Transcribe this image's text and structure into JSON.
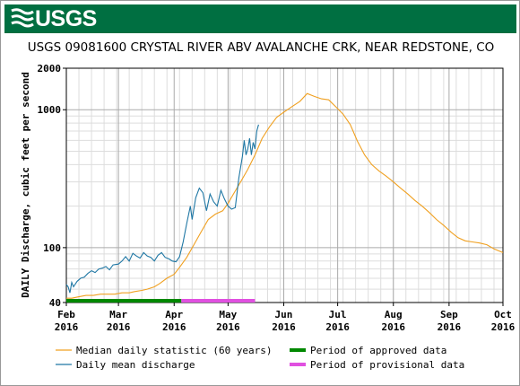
{
  "brand": {
    "logo_text": "USGS",
    "banner_color": "#006f41"
  },
  "chart_data": {
    "type": "line",
    "title": "USGS 09081600 CRYSTAL RIVER ABV AVALANCHE CRK, NEAR REDSTONE, CO",
    "ylabel": "DAILY Discharge, cubic feet per second",
    "xlabel": "",
    "y_scale": "log",
    "ylim": [
      40,
      2000
    ],
    "y_ticks": [
      {
        "value": 40,
        "label": "40"
      },
      {
        "value": 100,
        "label": "100"
      },
      {
        "value": 1000,
        "label": "1000"
      },
      {
        "value": 2000,
        "label": "2000"
      }
    ],
    "xlim": [
      "2016-02-01",
      "2016-10-01"
    ],
    "x_ticks": [
      {
        "date": "2016-02-01",
        "month": "Feb",
        "year": "2016"
      },
      {
        "date": "2016-03-01",
        "month": "Mar",
        "year": "2016"
      },
      {
        "date": "2016-04-01",
        "month": "Apr",
        "year": "2016"
      },
      {
        "date": "2016-05-01",
        "month": "May",
        "year": "2016"
      },
      {
        "date": "2016-06-01",
        "month": "Jun",
        "year": "2016"
      },
      {
        "date": "2016-07-01",
        "month": "Jul",
        "year": "2016"
      },
      {
        "date": "2016-08-01",
        "month": "Aug",
        "year": "2016"
      },
      {
        "date": "2016-09-01",
        "month": "Sep",
        "year": "2016"
      },
      {
        "date": "2016-10-01",
        "month": "Oct",
        "year": "2016"
      }
    ],
    "grid": true,
    "legend_position": "bottom",
    "series": [
      {
        "name": "Median daily statistic (60 years)",
        "color": "#f0a020",
        "points": [
          [
            "2016-02-01",
            43
          ],
          [
            "2016-02-04",
            43
          ],
          [
            "2016-02-08",
            44
          ],
          [
            "2016-02-12",
            45
          ],
          [
            "2016-02-16",
            45
          ],
          [
            "2016-02-20",
            46
          ],
          [
            "2016-02-24",
            46
          ],
          [
            "2016-02-28",
            46
          ],
          [
            "2016-03-03",
            47
          ],
          [
            "2016-03-07",
            47
          ],
          [
            "2016-03-10",
            48
          ],
          [
            "2016-03-14",
            49
          ],
          [
            "2016-03-17",
            50
          ],
          [
            "2016-03-21",
            52
          ],
          [
            "2016-03-24",
            55
          ],
          [
            "2016-03-28",
            60
          ],
          [
            "2016-04-01",
            64
          ],
          [
            "2016-04-04",
            72
          ],
          [
            "2016-04-08",
            85
          ],
          [
            "2016-04-12",
            105
          ],
          [
            "2016-04-16",
            130
          ],
          [
            "2016-04-20",
            160
          ],
          [
            "2016-04-24",
            175
          ],
          [
            "2016-04-28",
            185
          ],
          [
            "2016-05-01",
            210
          ],
          [
            "2016-05-04",
            245
          ],
          [
            "2016-05-08",
            300
          ],
          [
            "2016-05-12",
            370
          ],
          [
            "2016-05-16",
            470
          ],
          [
            "2016-05-20",
            620
          ],
          [
            "2016-05-24",
            750
          ],
          [
            "2016-05-28",
            880
          ],
          [
            "2016-06-01",
            960
          ],
          [
            "2016-06-05",
            1040
          ],
          [
            "2016-06-10",
            1150
          ],
          [
            "2016-06-14",
            1310
          ],
          [
            "2016-06-18",
            1250
          ],
          [
            "2016-06-22",
            1200
          ],
          [
            "2016-06-26",
            1180
          ],
          [
            "2016-06-30",
            1050
          ],
          [
            "2016-07-04",
            930
          ],
          [
            "2016-07-08",
            780
          ],
          [
            "2016-07-12",
            590
          ],
          [
            "2016-07-16",
            470
          ],
          [
            "2016-07-20",
            400
          ],
          [
            "2016-07-24",
            360
          ],
          [
            "2016-07-28",
            330
          ],
          [
            "2016-08-01",
            300
          ],
          [
            "2016-08-05",
            270
          ],
          [
            "2016-08-09",
            245
          ],
          [
            "2016-08-13",
            220
          ],
          [
            "2016-08-17",
            200
          ],
          [
            "2016-08-21",
            180
          ],
          [
            "2016-08-25",
            160
          ],
          [
            "2016-08-29",
            145
          ],
          [
            "2016-09-02",
            130
          ],
          [
            "2016-09-06",
            118
          ],
          [
            "2016-09-10",
            112
          ],
          [
            "2016-09-14",
            110
          ],
          [
            "2016-09-18",
            108
          ],
          [
            "2016-09-22",
            105
          ],
          [
            "2016-09-26",
            98
          ],
          [
            "2016-10-01",
            92
          ]
        ]
      },
      {
        "name": "Daily mean discharge",
        "color": "#1f77a4",
        "points": [
          [
            "2016-02-01",
            54
          ],
          [
            "2016-02-02",
            52
          ],
          [
            "2016-02-03",
            47
          ],
          [
            "2016-02-04",
            56
          ],
          [
            "2016-02-05",
            52
          ],
          [
            "2016-02-07",
            57
          ],
          [
            "2016-02-09",
            60
          ],
          [
            "2016-02-11",
            61
          ],
          [
            "2016-02-13",
            65
          ],
          [
            "2016-02-15",
            68
          ],
          [
            "2016-02-17",
            66
          ],
          [
            "2016-02-19",
            70
          ],
          [
            "2016-02-21",
            71
          ],
          [
            "2016-02-23",
            73
          ],
          [
            "2016-02-25",
            69
          ],
          [
            "2016-02-27",
            75
          ],
          [
            "2016-03-01",
            76
          ],
          [
            "2016-03-03",
            80
          ],
          [
            "2016-03-05",
            86
          ],
          [
            "2016-03-07",
            80
          ],
          [
            "2016-03-09",
            91
          ],
          [
            "2016-03-11",
            87
          ],
          [
            "2016-03-13",
            84
          ],
          [
            "2016-03-15",
            92
          ],
          [
            "2016-03-17",
            87
          ],
          [
            "2016-03-19",
            85
          ],
          [
            "2016-03-21",
            80
          ],
          [
            "2016-03-23",
            88
          ],
          [
            "2016-03-25",
            92
          ],
          [
            "2016-03-27",
            85
          ],
          [
            "2016-03-29",
            83
          ],
          [
            "2016-03-31",
            80
          ],
          [
            "2016-04-02",
            79
          ],
          [
            "2016-04-04",
            86
          ],
          [
            "2016-04-06",
            110
          ],
          [
            "2016-04-08",
            150
          ],
          [
            "2016-04-10",
            200
          ],
          [
            "2016-04-11",
            160
          ],
          [
            "2016-04-13",
            230
          ],
          [
            "2016-04-15",
            270
          ],
          [
            "2016-04-17",
            250
          ],
          [
            "2016-04-19",
            185
          ],
          [
            "2016-04-21",
            245
          ],
          [
            "2016-04-23",
            215
          ],
          [
            "2016-04-25",
            200
          ],
          [
            "2016-04-27",
            260
          ],
          [
            "2016-04-29",
            225
          ],
          [
            "2016-05-01",
            200
          ],
          [
            "2016-05-03",
            190
          ],
          [
            "2016-05-05",
            195
          ],
          [
            "2016-05-07",
            320
          ],
          [
            "2016-05-09",
            460
          ],
          [
            "2016-05-10",
            600
          ],
          [
            "2016-05-11",
            470
          ],
          [
            "2016-05-12",
            520
          ],
          [
            "2016-05-13",
            620
          ],
          [
            "2016-05-14",
            470
          ],
          [
            "2016-05-15",
            580
          ],
          [
            "2016-05-16",
            520
          ],
          [
            "2016-05-17",
            700
          ],
          [
            "2016-05-18",
            780
          ]
        ]
      }
    ],
    "status_bars": [
      {
        "name": "Period of approved data",
        "color": "#008800",
        "start": "2016-02-01",
        "end": "2016-04-05"
      },
      {
        "name": "Period of provisional data",
        "color": "#e050e0",
        "start": "2016-04-05",
        "end": "2016-05-16"
      }
    ]
  }
}
